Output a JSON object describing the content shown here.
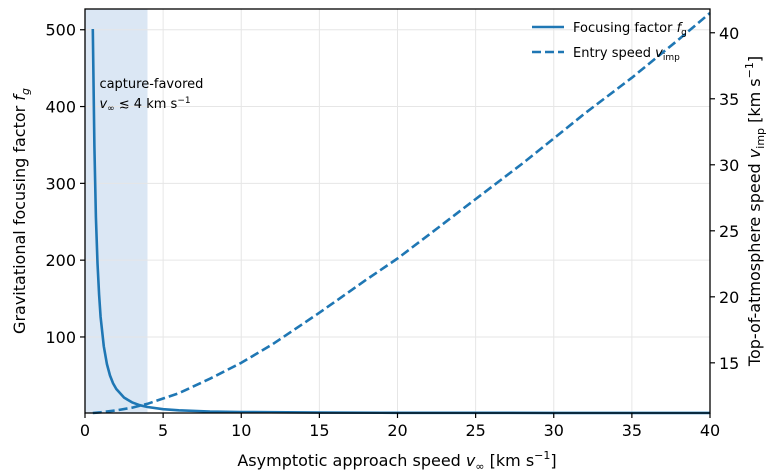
{
  "chart_data": {
    "type": "line",
    "x_range": [
      0,
      40
    ],
    "y_left_range": [
      1,
      527
    ],
    "y_right_range": [
      11.2,
      41.8
    ],
    "x_ticks": [
      0,
      5,
      10,
      15,
      20,
      25,
      30,
      35,
      40
    ],
    "y_left_ticks": [
      100,
      200,
      300,
      400,
      500
    ],
    "y_right_ticks": [
      15,
      20,
      25,
      30,
      35,
      40
    ],
    "xlabel": {
      "main": "Asymptotic approach speed ",
      "sym": "v",
      "sub": "∞",
      "unit": " [km s",
      "sup": "−1",
      "end": "]"
    },
    "ylabel_left": {
      "main": "Gravitational focusing factor ",
      "sym": "f",
      "sub": "g"
    },
    "ylabel_right": {
      "main": "Top-of-atmosphere speed ",
      "sym": "v",
      "sub": "imp",
      "unit": " [km s",
      "sup": "−1",
      "end": "]"
    },
    "grid": true,
    "legend_position": "top-right",
    "shaded_region": {
      "x_from": 0,
      "x_to": 4,
      "color": "#dbe7f4"
    },
    "annotation": {
      "line1": "capture-favored",
      "line2_sym": "v",
      "line2_sub": "∞",
      "line2_rest": " ≲ 4 km s",
      "line2_sup": "−1",
      "x": 0.7,
      "y": 424
    },
    "series": [
      {
        "name": {
          "main": "Focusing factor ",
          "sym": "f",
          "sub": "g"
        },
        "axis": "left",
        "style": "solid",
        "color": "#1f77b4",
        "points": [
          [
            0.5,
            501
          ],
          [
            0.6,
            348
          ],
          [
            0.7,
            256
          ],
          [
            0.8,
            196
          ],
          [
            0.9,
            155
          ],
          [
            1.0,
            126
          ],
          [
            1.2,
            87.8
          ],
          [
            1.4,
            64.8
          ],
          [
            1.6,
            49.8
          ],
          [
            1.8,
            39.5
          ],
          [
            2.0,
            32.2
          ],
          [
            2.5,
            21.0
          ],
          [
            3.0,
            14.9
          ],
          [
            3.5,
            11.2
          ],
          [
            4.0,
            8.8
          ],
          [
            5.0,
            6.0
          ],
          [
            6.0,
            4.5
          ],
          [
            8.0,
            3.0
          ],
          [
            10.0,
            2.25
          ],
          [
            15.0,
            1.56
          ],
          [
            20.0,
            1.31
          ],
          [
            25.0,
            1.2
          ],
          [
            30.0,
            1.14
          ],
          [
            35.0,
            1.1
          ],
          [
            40.0,
            1.08
          ]
        ]
      },
      {
        "name": {
          "main": "Entry speed ",
          "sym": "v",
          "sub": "imp"
        },
        "axis": "right",
        "style": "dashed",
        "color": "#1f77b4",
        "points": [
          [
            0.5,
            11.2
          ],
          [
            1,
            11.25
          ],
          [
            2,
            11.4
          ],
          [
            3,
            11.6
          ],
          [
            4,
            11.9
          ],
          [
            5,
            12.3
          ],
          [
            6,
            12.7
          ],
          [
            8,
            13.8
          ],
          [
            10,
            15.0
          ],
          [
            12,
            16.4
          ],
          [
            15,
            18.8
          ],
          [
            18,
            21.3
          ],
          [
            20,
            22.9
          ],
          [
            22,
            24.7
          ],
          [
            25,
            27.4
          ],
          [
            28,
            30.1
          ],
          [
            30,
            32.0
          ],
          [
            32,
            33.9
          ],
          [
            35,
            36.6
          ],
          [
            38,
            39.5
          ],
          [
            40,
            41.5
          ]
        ]
      }
    ]
  }
}
